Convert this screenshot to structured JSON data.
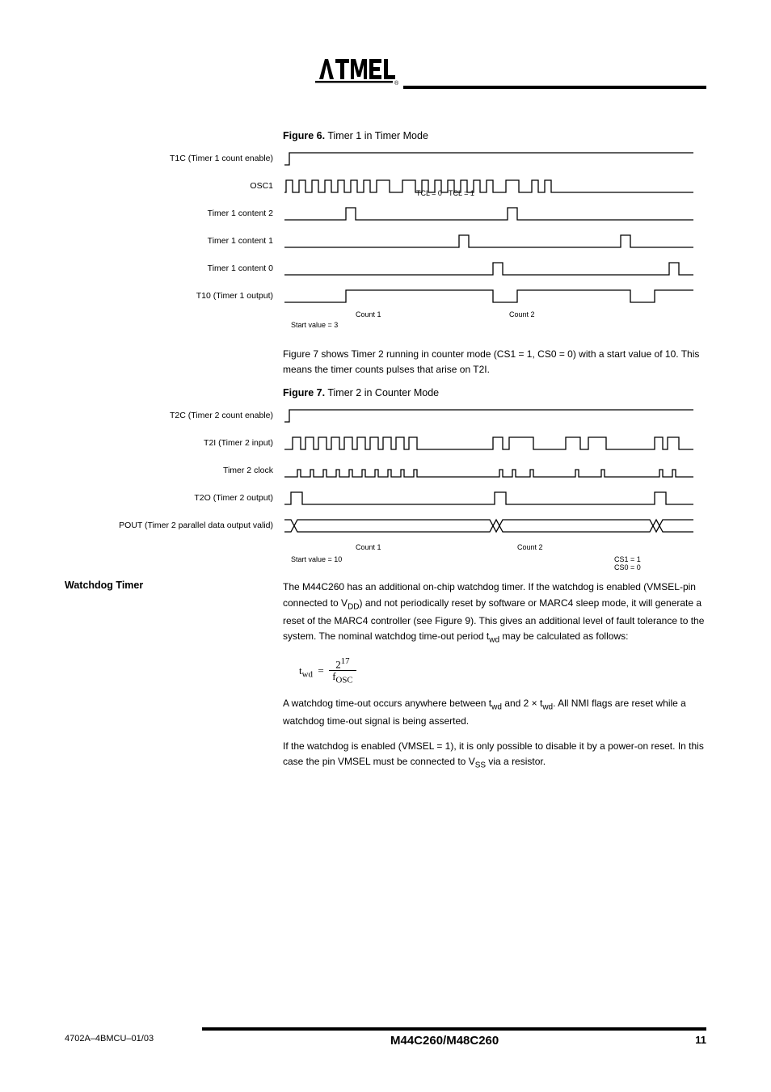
{
  "figure6": {
    "label": "Figure 6.",
    "title": "Timer 1 in Timer Mode",
    "signals": [
      {
        "name": "T1C (Timer 1 count enable)"
      },
      {
        "name": "OSC1"
      },
      {
        "name": "Timer 1 content 2"
      },
      {
        "name": "Timer 1 content 1"
      },
      {
        "name": "Timer 1 content 0"
      },
      {
        "name": "T10 (Timer 1 output)"
      }
    ],
    "overlays": {
      "tcl_1": "TCL = 0",
      "tcl_2": "TCL = 1",
      "count_1": "Count 1",
      "count_2": "Count 2",
      "start_value": "Start value = 3"
    }
  },
  "figure7": {
    "label": "Figure 7.",
    "title": "Timer 2 in Counter Mode",
    "signals": [
      {
        "name": "T2C (Timer 2 count enable)"
      },
      {
        "name": "T2I (Timer 2 input)"
      },
      {
        "name": "Timer 2 clock"
      },
      {
        "name": "T2O (Timer 2 output)"
      },
      {
        "name": "POUT (Timer 2 parallel data output valid)"
      }
    ],
    "overlays": {
      "count_1": "Count 1",
      "count_2": "Count 2",
      "start_value": "Start value = 10",
      "cs1": "CS1 = 1",
      "cs0": "CS0 = 0"
    }
  },
  "watchdog": {
    "title": "Watchdog Timer",
    "text": "The M44C260 has an additional on-chip watchdog timer. If the watchdog is enabled (VMSEL-pin connected to V_DD) and not periodically reset by software or MARC4 sleep mode, it will generate a reset of the MARC4 controller (see Figure 9). This gives an additional level of fault tolerance to the system. The nominal watchdog time-out period t_wd may be calculated as follows:"
  },
  "formula": {
    "twd": "t",
    "twd_sub": "wd",
    "equals": " = ",
    "two17": "2",
    "exp17": "17",
    "fosc": "f",
    "fosc_sub": "OSC"
  },
  "para2": "A watchdog time-out occurs anywhere between t_wd and 2 × t_wd. All NMI flags are reset while a watchdog time-out signal is being asserted.",
  "para3": "If the watchdog is enabled (VMSEL = 1), it is only possible to disable it by a power-on reset. In this case the pin VMSEL must be connected to V_SS via a resistor.",
  "footer": {
    "left": "4702A–4BMCU–01/03",
    "title": "M44C260/M48C260",
    "page": "11"
  },
  "colors": {
    "line": "#000000",
    "bg": "#ffffff"
  },
  "fonts": {
    "body_size": 12,
    "label_size": 10.5,
    "overlay_size": 9
  }
}
